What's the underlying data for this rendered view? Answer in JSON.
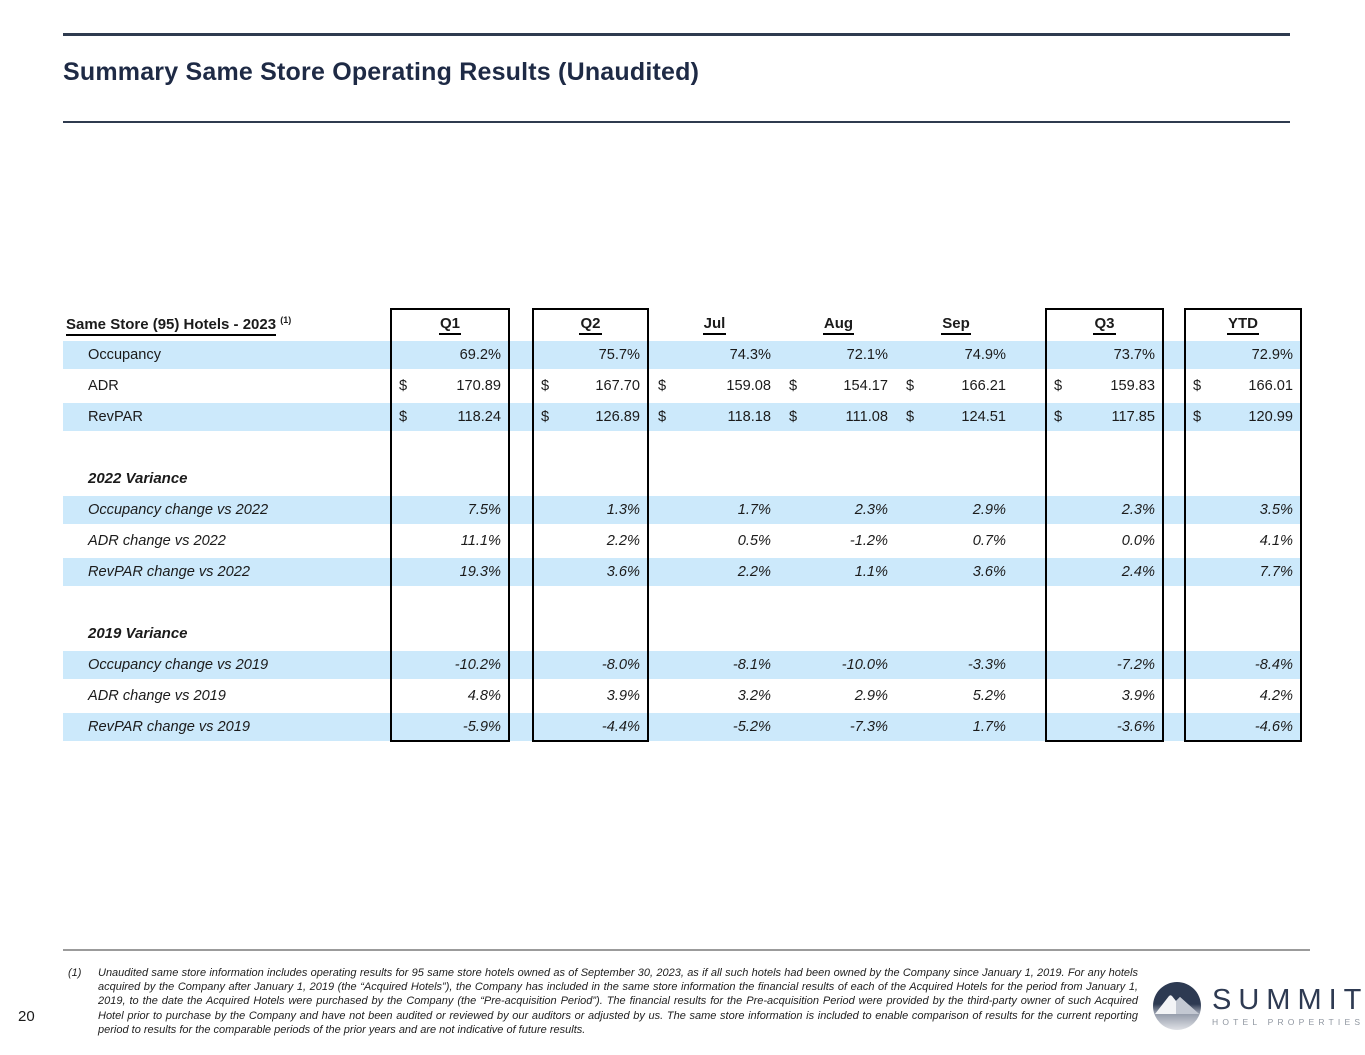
{
  "header": {
    "title": "Summary Same Store Operating Results (Unaudited)"
  },
  "table": {
    "row_header": "Same Store (95) Hotels - 2023",
    "row_header_superscript": "(1)",
    "currency_symbol": "$",
    "columns": [
      "Q1",
      "Q2",
      "Jul",
      "Aug",
      "Sep",
      "Q3",
      "YTD"
    ],
    "metrics": [
      {
        "label": "Occupancy",
        "type": "percent",
        "values": [
          "69.2%",
          "75.7%",
          "74.3%",
          "72.1%",
          "74.9%",
          "73.7%",
          "72.9%"
        ]
      },
      {
        "label": "ADR",
        "type": "currency",
        "values": [
          "170.89",
          "167.70",
          "159.08",
          "154.17",
          "166.21",
          "159.83",
          "166.01"
        ]
      },
      {
        "label": "RevPAR",
        "type": "currency",
        "values": [
          "118.24",
          "126.89",
          "118.18",
          "111.08",
          "124.51",
          "117.85",
          "120.99"
        ]
      }
    ],
    "sections": [
      {
        "title": "2022 Variance",
        "rows": [
          {
            "label": "Occupancy change vs 2022",
            "values": [
              "7.5%",
              "1.3%",
              "1.7%",
              "2.3%",
              "2.9%",
              "2.3%",
              "3.5%"
            ]
          },
          {
            "label": "ADR change vs 2022",
            "values": [
              "11.1%",
              "2.2%",
              "0.5%",
              "-1.2%",
              "0.7%",
              "0.0%",
              "4.1%"
            ]
          },
          {
            "label": "RevPAR change vs 2022",
            "values": [
              "19.3%",
              "3.6%",
              "2.2%",
              "1.1%",
              "3.6%",
              "2.4%",
              "7.7%"
            ]
          }
        ]
      },
      {
        "title": "2019 Variance",
        "rows": [
          {
            "label": "Occupancy change vs 2019",
            "values": [
              "-10.2%",
              "-8.0%",
              "-8.1%",
              "-10.0%",
              "-3.3%",
              "-7.2%",
              "-8.4%"
            ]
          },
          {
            "label": "ADR change vs 2019",
            "values": [
              "4.8%",
              "3.9%",
              "3.2%",
              "2.9%",
              "5.2%",
              "3.9%",
              "4.2%"
            ]
          },
          {
            "label": "RevPAR change vs 2019",
            "values": [
              "-5.9%",
              "-4.4%",
              "-5.2%",
              "-7.3%",
              "1.7%",
              "-3.6%",
              "-4.6%"
            ]
          }
        ]
      }
    ]
  },
  "footnote": {
    "marker": "(1)",
    "text": "Unaudited same store information includes operating results for 95 same store hotels owned as of September 30, 2023, as if all such hotels had been owned by the Company since January 1, 2019. For any hotels acquired by the Company after January 1, 2019 (the “Acquired Hotels”), the Company has included in the same store information the financial results of each of the Acquired Hotels for the period from January 1, 2019, to the date the Acquired Hotels were purchased by the Company (the “Pre-acquisition Period”). The financial results for the Pre-acquisition Period were provided by the third-party owner of such Acquired Hotel prior to purchase by the Company and have not been audited or reviewed by our auditors or adjusted by us. The same store information is included to enable comparison of results for the current reporting period to results for the comparable periods of the prior years and are not indicative of future results."
  },
  "page": {
    "number": "20"
  },
  "logo": {
    "name": "SUMMIT",
    "subtitle": "HOTEL PROPERTIES"
  },
  "colors": {
    "accent_navy": "#1e2a45",
    "stripe_blue": "#cce9fb",
    "rule_navy": "#2f3b4f",
    "logo_gray": "#9097a1"
  }
}
